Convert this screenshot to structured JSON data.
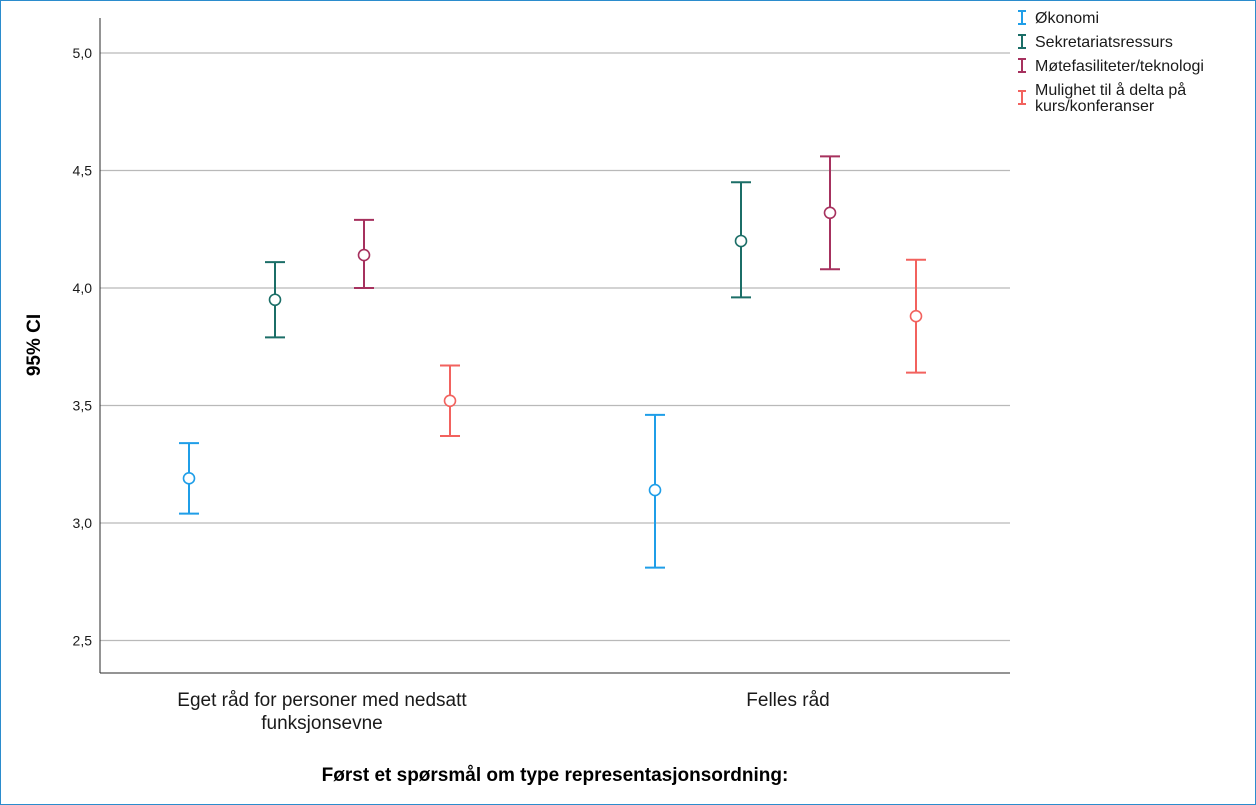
{
  "chart_data": {
    "type": "errorbar",
    "title": "",
    "xlabel": "Først et spørsmål om type representasjonsordning:",
    "ylabel": "95% CI",
    "ylim": [
      2.35,
      5.1
    ],
    "yticks": [
      2.5,
      3.0,
      3.5,
      4.0,
      4.5,
      5.0
    ],
    "ytick_labels": [
      "2,5",
      "3,0",
      "3,5",
      "4,0",
      "4,5",
      "5,0"
    ],
    "grid": true,
    "legend_position": "top-right",
    "categories": [
      [
        "Eget råd for personer med nedsatt",
        "funksjonsevne"
      ],
      [
        "Felles råd"
      ]
    ],
    "series": [
      {
        "name": "Økonomi",
        "color": "#1f9ee8",
        "mean": [
          3.19,
          3.14
        ],
        "lower": [
          3.04,
          2.81
        ],
        "upper": [
          3.34,
          3.46
        ]
      },
      {
        "name": "Sekretariatsressurs",
        "color": "#1b6e67",
        "mean": [
          3.95,
          4.2
        ],
        "lower": [
          3.79,
          3.96
        ],
        "upper": [
          4.11,
          4.45
        ]
      },
      {
        "name": "Møtefasiliteter/teknologi",
        "color": "#a6315e",
        "mean": [
          4.14,
          4.32
        ],
        "lower": [
          4.0,
          4.08
        ],
        "upper": [
          4.29,
          4.56
        ]
      },
      {
        "name": [
          "Mulighet til å delta på",
          "kurs/konferanser"
        ],
        "color": "#f2625e",
        "mean": [
          3.52,
          3.88
        ],
        "lower": [
          3.37,
          3.64
        ],
        "upper": [
          3.67,
          4.12
        ]
      }
    ]
  }
}
